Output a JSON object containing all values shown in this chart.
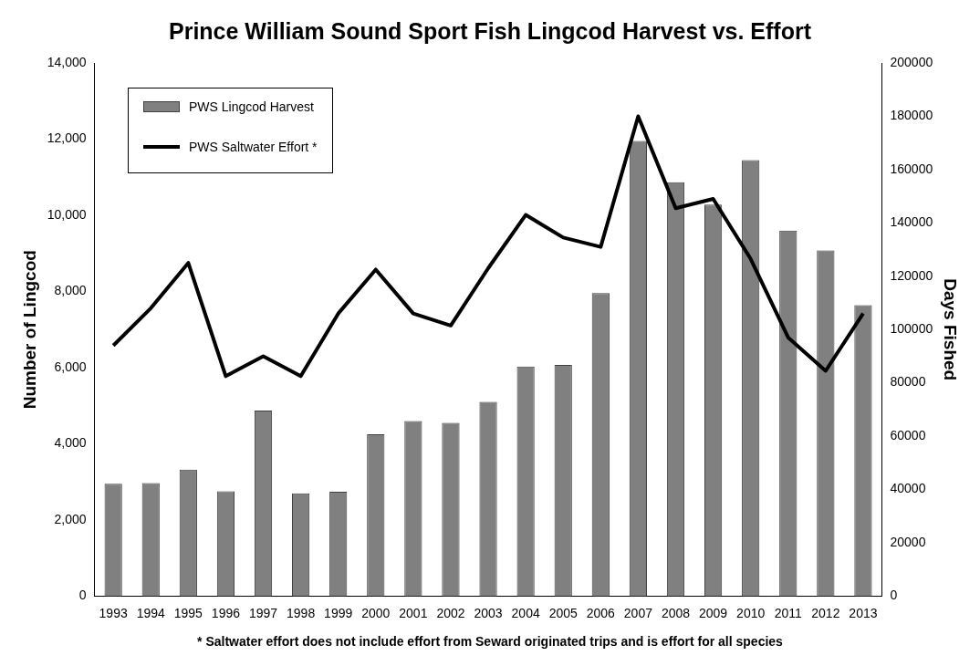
{
  "chart_data": {
    "type": "bar",
    "title": "Prince William Sound Sport Fish Lingcod Harvest vs. Effort",
    "ylabel": "Number of Lingcod",
    "y2label": "Days Fished",
    "categories": [
      "1993",
      "1994",
      "1995",
      "1996",
      "1997",
      "1998",
      "1999",
      "2000",
      "2001",
      "2002",
      "2003",
      "2004",
      "2005",
      "2006",
      "2007",
      "2008",
      "2009",
      "2010",
      "2011",
      "2012",
      "2013"
    ],
    "series": [
      {
        "name": "PWS Lingcod Harvest",
        "color": "#808080",
        "values": [
          2950,
          2970,
          3320,
          2750,
          4870,
          2700,
          2740,
          4250,
          4600,
          4550,
          5100,
          6030,
          6070,
          7960,
          11950,
          10870,
          10280,
          11450,
          9600,
          9080,
          7640
        ]
      },
      {
        "name": "PWS Saltwater Effort *",
        "type": "line",
        "axis": "y2",
        "color": "#000000",
        "values": [
          94000,
          108000,
          125000,
          82500,
          90000,
          82500,
          106000,
          122500,
          106000,
          101500,
          123000,
          143000,
          134500,
          131000,
          180000,
          145500,
          149000,
          126500,
          97000,
          84500,
          106000
        ]
      }
    ],
    "ylim": [
      0,
      14000
    ],
    "yticks": [
      {
        "value": 0,
        "label": "0"
      },
      {
        "value": 2000,
        "label": "2,000"
      },
      {
        "value": 4000,
        "label": "4,000"
      },
      {
        "value": 6000,
        "label": "6,000"
      },
      {
        "value": 8000,
        "label": "8,000"
      },
      {
        "value": 10000,
        "label": "10,000"
      },
      {
        "value": 12000,
        "label": "12,000"
      },
      {
        "value": 14000,
        "label": "14,000"
      }
    ],
    "y2lim": [
      0,
      200000
    ],
    "y2ticks": [
      0,
      20000,
      40000,
      60000,
      80000,
      100000,
      120000,
      140000,
      160000,
      180000,
      200000
    ],
    "legend": "top left",
    "grid": false,
    "marker": "none",
    "line_style": "solid",
    "annotations": [
      "* Saltwater effort does not include effort from Seward originated trips and is effort for all species"
    ]
  }
}
